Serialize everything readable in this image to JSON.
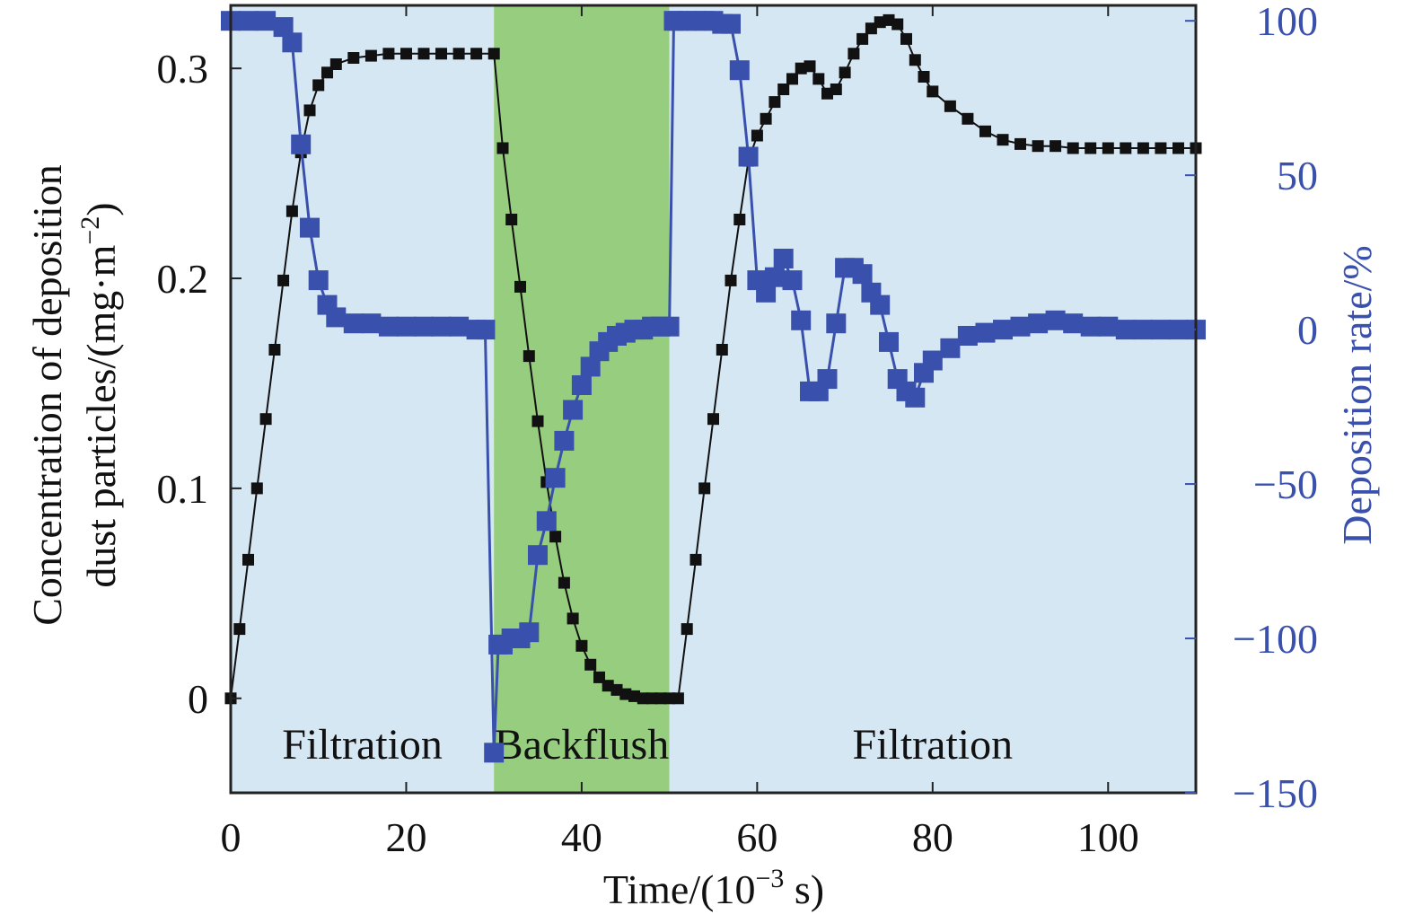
{
  "chart_data": {
    "type": "line",
    "title": "",
    "xlabel": {
      "prefix": "Time/(10",
      "sup": "−3",
      "suffix": " s)"
    },
    "ylabel_left": {
      "line1": "Concentration of deposition",
      "line2_prefix": "dust particles/(mg·m",
      "line2_sup": "−2",
      "line2_suffix": ")"
    },
    "ylabel_right": "Deposition rate/%",
    "xlim": [
      0,
      110
    ],
    "ylim_left": [
      -0.045,
      0.33
    ],
    "ylim_right": [
      -150,
      105
    ],
    "x_ticks": [
      "0",
      "20",
      "40",
      "60",
      "80",
      "100"
    ],
    "x_tick_values": [
      0,
      20,
      40,
      60,
      80,
      100
    ],
    "y_left_ticks": [
      "0",
      "0.1",
      "0.2",
      "0.3"
    ],
    "y_left_tick_values": [
      0,
      0.1,
      0.2,
      0.3
    ],
    "y_right_ticks": [
      "100",
      "50",
      "0",
      "−50",
      "−100",
      "−150"
    ],
    "y_right_tick_values": [
      100,
      50,
      0,
      -50,
      -100,
      -150
    ],
    "regions": [
      {
        "label": "Filtration",
        "x_start": 0,
        "x_end": 30,
        "color": "#d6e7f4"
      },
      {
        "label": "Backflush",
        "x_start": 30,
        "x_end": 50,
        "color": "#96cd7f"
      },
      {
        "label": "Filtration",
        "x_start": 50,
        "x_end": 110,
        "color": "#d6e7f4"
      }
    ],
    "series": [
      {
        "axis": "left",
        "color": "#111111",
        "marker": "square",
        "x": [
          0,
          1,
          2,
          3,
          4,
          5,
          6,
          7,
          8,
          9,
          10,
          11,
          12,
          14,
          16,
          18,
          20,
          22,
          24,
          26,
          28,
          30,
          31,
          32,
          33,
          34,
          35,
          36,
          37,
          38,
          39,
          40,
          41,
          42,
          43,
          44,
          45,
          46,
          47,
          48,
          49,
          50,
          51,
          52,
          53,
          54,
          55,
          56,
          57,
          58,
          59,
          60,
          61,
          62,
          63,
          64,
          65,
          66,
          67,
          68,
          69,
          70,
          71,
          72,
          73,
          74,
          75,
          76,
          77,
          78,
          79,
          80,
          82,
          84,
          86,
          88,
          90,
          92,
          94,
          96,
          98,
          100,
          102,
          104,
          106,
          108,
          110
        ],
        "y": [
          0.0,
          0.033,
          0.066,
          0.1,
          0.133,
          0.166,
          0.199,
          0.232,
          0.26,
          0.28,
          0.292,
          0.298,
          0.302,
          0.305,
          0.306,
          0.307,
          0.307,
          0.307,
          0.307,
          0.307,
          0.307,
          0.307,
          0.262,
          0.228,
          0.196,
          0.163,
          0.132,
          0.103,
          0.077,
          0.055,
          0.038,
          0.025,
          0.016,
          0.01,
          0.006,
          0.004,
          0.002,
          0.001,
          0.0,
          0.0,
          0.0,
          0.0,
          0.0,
          0.033,
          0.066,
          0.1,
          0.133,
          0.166,
          0.199,
          0.228,
          0.256,
          0.268,
          0.276,
          0.284,
          0.29,
          0.295,
          0.3,
          0.301,
          0.295,
          0.288,
          0.29,
          0.298,
          0.307,
          0.314,
          0.319,
          0.322,
          0.323,
          0.321,
          0.314,
          0.304,
          0.296,
          0.289,
          0.282,
          0.276,
          0.27,
          0.266,
          0.264,
          0.263,
          0.263,
          0.262,
          0.262,
          0.262,
          0.262,
          0.262,
          0.262,
          0.262,
          0.262
        ]
      },
      {
        "axis": "right",
        "color": "#3a50ad",
        "marker": "square",
        "x": [
          0,
          2,
          4,
          6,
          7,
          8,
          9,
          10,
          11,
          12,
          14,
          16,
          18,
          20,
          22,
          24,
          26,
          28,
          29,
          30,
          30.5,
          31,
          32,
          33,
          34,
          35,
          36,
          37,
          38,
          39,
          40,
          41,
          42,
          43,
          44,
          45,
          46,
          47,
          48,
          49,
          50,
          50.5,
          51,
          52,
          53,
          54,
          55,
          56,
          57,
          58,
          59,
          60,
          61,
          62,
          63,
          64,
          65,
          66,
          67,
          68,
          69,
          70,
          71,
          72,
          73,
          74,
          75,
          76,
          77,
          78,
          79,
          80,
          82,
          84,
          86,
          88,
          90,
          92,
          94,
          96,
          98,
          100,
          102,
          104,
          106,
          108,
          110
        ],
        "y": [
          100,
          100,
          100,
          98,
          93,
          60,
          33,
          16,
          8,
          4,
          2,
          2,
          1,
          1,
          1,
          1,
          1,
          0,
          0,
          -137,
          -102,
          -102,
          -100,
          -100,
          -98,
          -73,
          -62,
          -48,
          -36,
          -26,
          -18,
          -12,
          -7,
          -4,
          -2,
          -1,
          0,
          0,
          1,
          1,
          1,
          100,
          100,
          100,
          100,
          100,
          100,
          99,
          99,
          84,
          56,
          16,
          12,
          17,
          23,
          16,
          3,
          -20,
          -20,
          -16,
          2,
          20,
          20,
          18,
          12,
          8,
          -4,
          -16,
          -20,
          -22,
          -14,
          -10,
          -6,
          -2,
          -1,
          0,
          1,
          2,
          3,
          2,
          1,
          1,
          0,
          0,
          0,
          0,
          0
        ]
      }
    ]
  }
}
